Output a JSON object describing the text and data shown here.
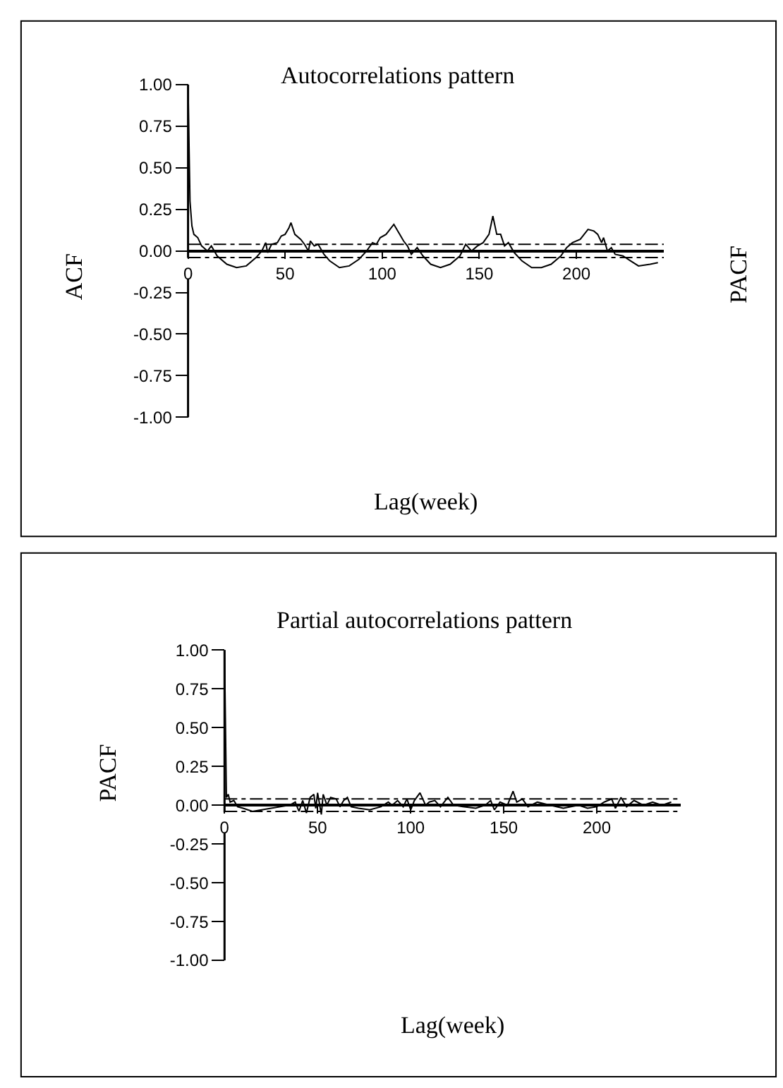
{
  "chart_data": [
    {
      "type": "line",
      "title": "Autocorrelations pattern",
      "xlabel": "Lag(week)",
      "ylabel": "ACF",
      "y2label": "PACF",
      "xlim": [
        0,
        245
      ],
      "xticks": [
        0,
        50,
        100,
        150,
        200
      ],
      "ylim": [
        -1,
        1
      ],
      "yticks": [
        {
          "value": 1,
          "label": "1.00"
        },
        {
          "value": 0.75,
          "label": "0.75"
        },
        {
          "value": 0.5,
          "label": "0.50"
        },
        {
          "value": 0.25,
          "label": "0.25"
        },
        {
          "value": 0,
          "label": "0.00"
        },
        {
          "value": -0.25,
          "label": "-0.25"
        },
        {
          "value": -0.5,
          "label": "-0.50"
        },
        {
          "value": -0.75,
          "label": "-0.75"
        },
        {
          "value": -1,
          "label": "-1.00"
        }
      ],
      "grid": false,
      "marker": "none",
      "line_style": "solid",
      "ref_lines": [
        {
          "axis": "y",
          "value": 0.04,
          "label": null,
          "color": "#000000",
          "line_style": "dashdot"
        },
        {
          "axis": "y",
          "value": -0.04,
          "label": null,
          "color": "#000000",
          "line_style": "dashdot"
        }
      ],
      "series": [
        {
          "color": "#000000",
          "x": [
            0,
            1,
            2,
            3,
            5,
            7,
            10,
            12,
            15,
            20,
            25,
            30,
            35,
            38,
            40,
            41,
            43,
            46,
            48,
            50,
            52,
            53,
            55,
            58,
            60,
            62,
            63,
            65,
            67,
            70,
            73,
            78,
            83,
            88,
            92,
            95,
            97,
            99,
            102,
            106,
            109,
            111,
            113,
            115,
            118,
            121,
            125,
            130,
            135,
            140,
            143,
            146,
            149,
            152,
            155,
            157,
            159,
            161,
            163,
            165,
            168,
            172,
            177,
            182,
            187,
            192,
            195,
            198,
            202,
            206,
            209,
            211,
            213,
            214,
            216,
            218,
            220,
            224,
            228,
            232,
            238,
            242
          ],
          "values": [
            1.0,
            0.3,
            0.15,
            0.1,
            0.08,
            0.03,
            0.0,
            0.03,
            -0.03,
            -0.08,
            -0.1,
            -0.09,
            -0.04,
            0.0,
            0.05,
            -0.01,
            0.04,
            0.05,
            0.09,
            0.1,
            0.14,
            0.17,
            0.1,
            0.07,
            0.04,
            0.0,
            0.06,
            0.03,
            0.04,
            -0.02,
            -0.06,
            -0.1,
            -0.09,
            -0.05,
            0.0,
            0.05,
            0.04,
            0.08,
            0.1,
            0.16,
            0.1,
            0.06,
            0.03,
            -0.02,
            0.02,
            -0.03,
            -0.08,
            -0.1,
            -0.08,
            -0.03,
            0.04,
            0.0,
            0.03,
            0.05,
            0.1,
            0.21,
            0.1,
            0.1,
            0.03,
            0.05,
            -0.01,
            -0.06,
            -0.1,
            -0.1,
            -0.08,
            -0.03,
            0.02,
            0.05,
            0.07,
            0.13,
            0.12,
            0.1,
            0.05,
            0.08,
            0.0,
            0.02,
            -0.02,
            -0.03,
            -0.06,
            -0.09,
            -0.08,
            -0.07
          ]
        }
      ]
    },
    {
      "type": "line",
      "title": "Partial autocorrelations pattern",
      "xlabel": "Lag(week)",
      "ylabel": "PACF",
      "xlim": [
        0,
        245
      ],
      "xticks": [
        0,
        50,
        100,
        150,
        200
      ],
      "ylim": [
        -1,
        1
      ],
      "yticks": [
        {
          "value": 1,
          "label": "1.00"
        },
        {
          "value": 0.75,
          "label": "0.75"
        },
        {
          "value": 0.5,
          "label": "0.50"
        },
        {
          "value": 0.25,
          "label": "0.25"
        },
        {
          "value": 0,
          "label": "0.00"
        },
        {
          "value": -0.25,
          "label": "-0.25"
        },
        {
          "value": -0.5,
          "label": "-0.50"
        },
        {
          "value": -0.75,
          "label": "-0.75"
        },
        {
          "value": -1,
          "label": "-1.00"
        }
      ],
      "grid": false,
      "marker": "none",
      "line_style": "solid",
      "ref_lines": [
        {
          "axis": "y",
          "value": 0.04,
          "label": null,
          "color": "#000000",
          "line_style": "dashdot"
        },
        {
          "axis": "y",
          "value": -0.04,
          "label": null,
          "color": "#000000",
          "line_style": "dashdot"
        }
      ],
      "series": [
        {
          "color": "#000000",
          "x": [
            0,
            1,
            2,
            3,
            5,
            7,
            10,
            15,
            20,
            25,
            30,
            35,
            38,
            40,
            42,
            44,
            46,
            48,
            49,
            50,
            52,
            53,
            55,
            57,
            60,
            62,
            64,
            66,
            68,
            72,
            78,
            84,
            88,
            90,
            93,
            96,
            98,
            100,
            102,
            105,
            108,
            110,
            113,
            116,
            120,
            123,
            128,
            135,
            140,
            143,
            145,
            148,
            152,
            155,
            157,
            160,
            163,
            168,
            175,
            182,
            190,
            195,
            200,
            204,
            208,
            210,
            213,
            216,
            220,
            225,
            230,
            235,
            240
          ],
          "values": [
            1.0,
            0.05,
            0.07,
            0.02,
            0.03,
            -0.01,
            -0.02,
            -0.04,
            -0.03,
            -0.02,
            -0.01,
            0.0,
            0.02,
            -0.04,
            0.03,
            -0.05,
            0.05,
            0.07,
            -0.02,
            0.08,
            -0.06,
            0.07,
            0.0,
            0.05,
            0.04,
            -0.01,
            0.03,
            0.05,
            -0.01,
            -0.02,
            -0.03,
            -0.01,
            0.02,
            0.0,
            0.03,
            -0.01,
            0.04,
            -0.03,
            0.03,
            0.08,
            0.0,
            0.02,
            0.03,
            -0.01,
            0.05,
            0.0,
            -0.01,
            -0.02,
            0.0,
            0.03,
            -0.03,
            0.02,
            0.0,
            0.09,
            0.02,
            0.04,
            -0.01,
            0.02,
            0.0,
            -0.02,
            0.0,
            -0.02,
            -0.01,
            0.02,
            0.04,
            -0.02,
            0.05,
            -0.01,
            0.03,
            0.0,
            0.02,
            0.0,
            0.02
          ]
        }
      ]
    }
  ]
}
